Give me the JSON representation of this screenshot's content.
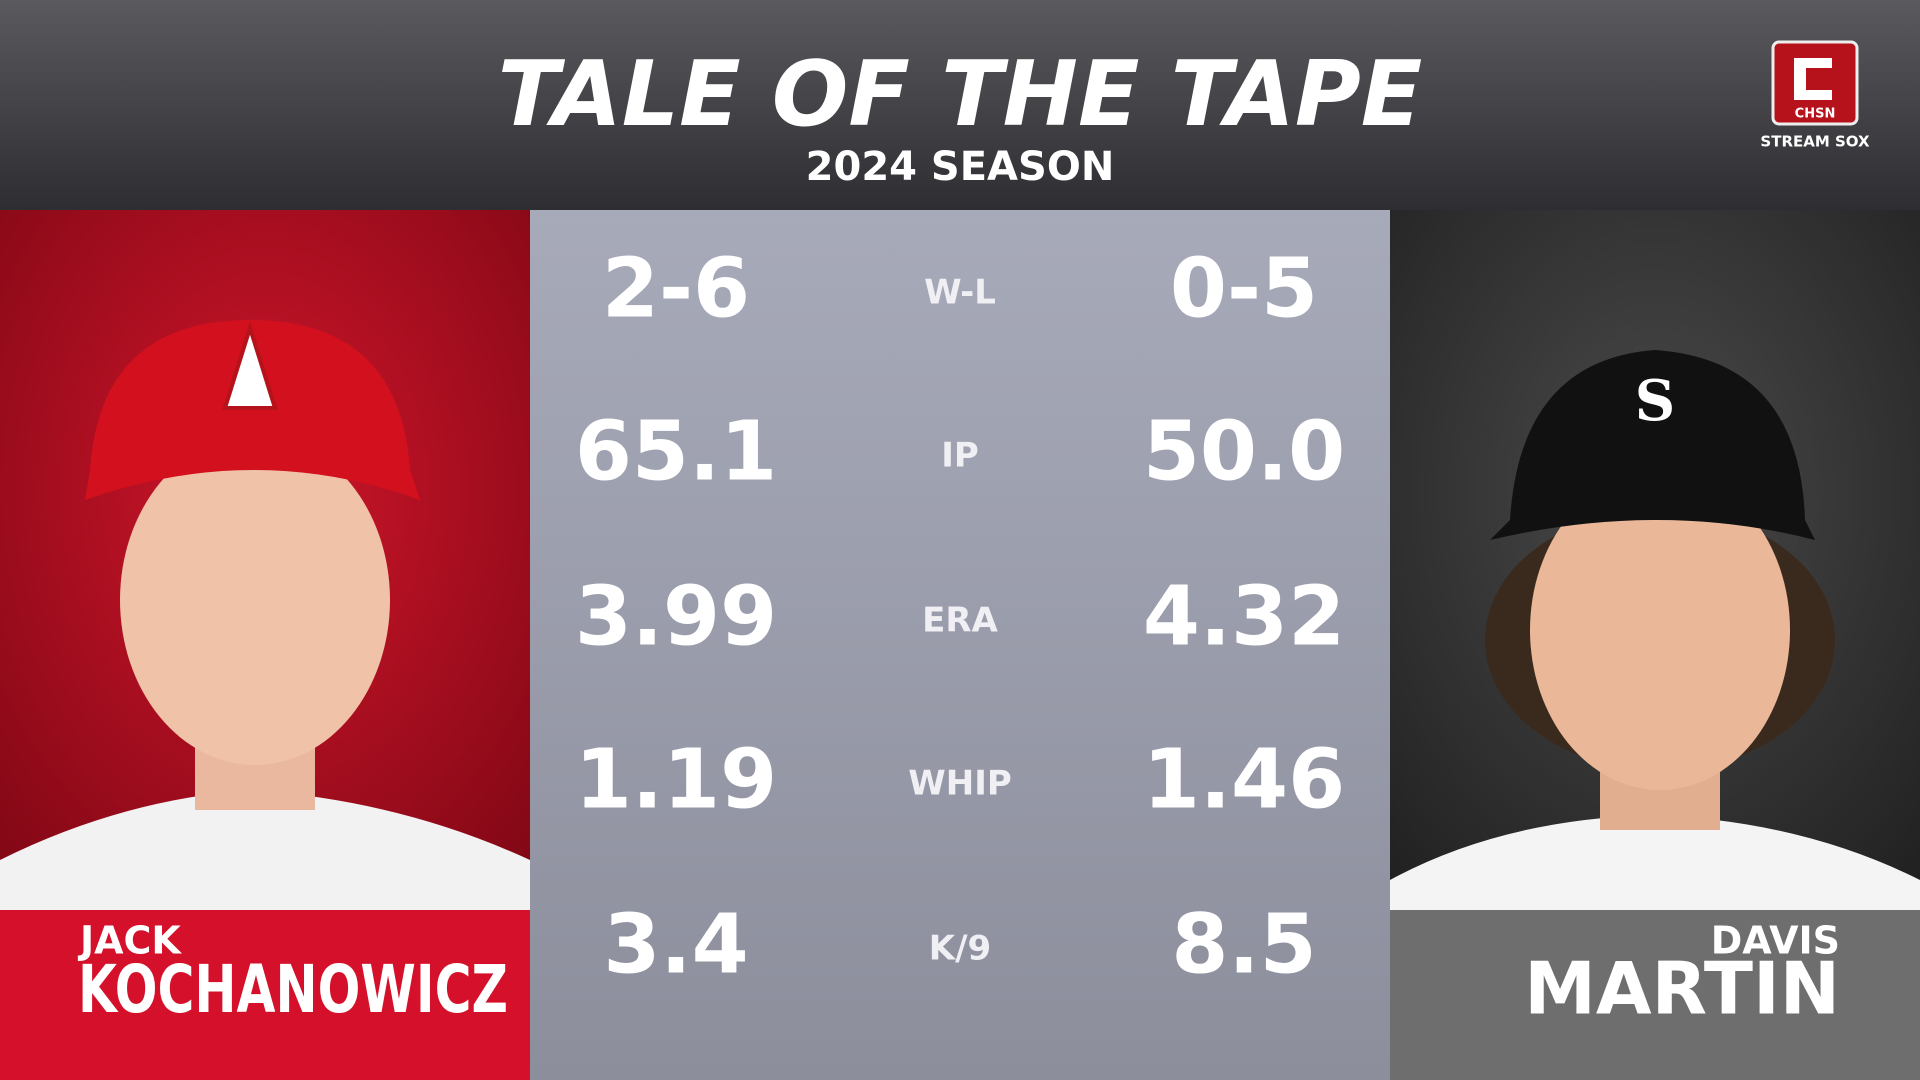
{
  "header": {
    "title": "TALE OF THE TAPE",
    "subtitle": "2024 SEASON",
    "logo": "CHSN",
    "logo_caption": "STREAM SOX"
  },
  "players": [
    {
      "first_name": "JACK",
      "last_name": "KOCHANOWICZ"
    },
    {
      "first_name": "DAVIS",
      "last_name": "MARTIN"
    }
  ],
  "stats": [
    {
      "label": "W-L",
      "left": "2-6",
      "right": "0-5"
    },
    {
      "label": "IP",
      "left": "65.1",
      "right": "50.0"
    },
    {
      "label": "ERA",
      "left": "3.99",
      "right": "4.32"
    },
    {
      "label": "WHIP",
      "left": "1.19",
      "right": "1.46"
    },
    {
      "label": "K/9",
      "left": "3.4",
      "right": "8.5"
    }
  ]
}
